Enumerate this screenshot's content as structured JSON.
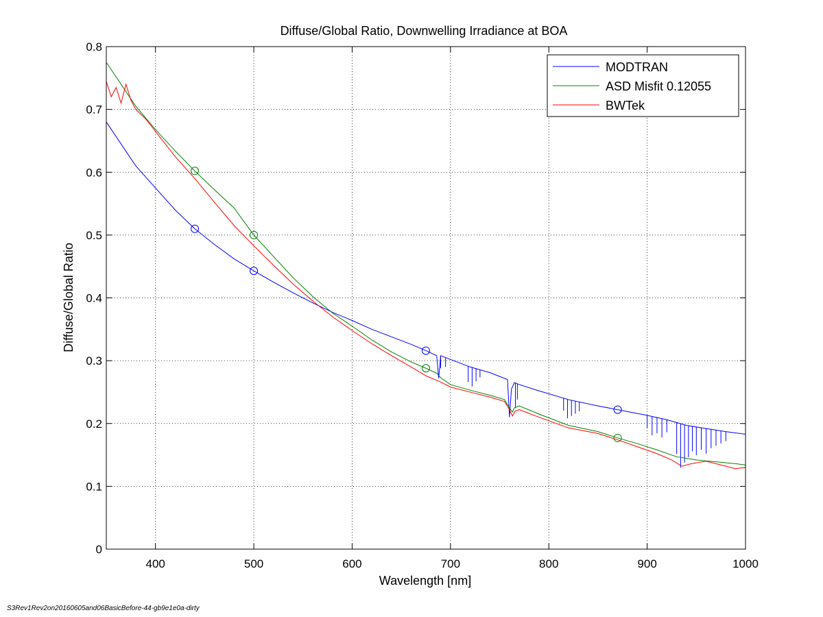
{
  "footer": "S3Rev1Rev2on20160605and06BasicBefore-44-gb9e1e0a-dirty",
  "chart_data": {
    "type": "line",
    "title": "Diffuse/Global Ratio, Downwelling Irradiance at BOA",
    "xlabel": "Wavelength [nm]",
    "ylabel": "Diffuse/Global Ratio",
    "xlim": [
      350,
      1000
    ],
    "ylim": [
      0,
      0.8
    ],
    "xticks": [
      400,
      500,
      600,
      700,
      800,
      900,
      1000
    ],
    "yticks": [
      0,
      0.1,
      0.2,
      0.3,
      0.4,
      0.5,
      0.6,
      0.7,
      0.8
    ],
    "xtick_labels": [
      "400",
      "500",
      "600",
      "700",
      "800",
      "900",
      "1000"
    ],
    "ytick_labels": [
      "0",
      "0.1",
      "0.2",
      "0.3",
      "0.4",
      "0.5",
      "0.6",
      "0.7",
      "0.8"
    ],
    "grid": true,
    "legend_position": "top-right",
    "series": [
      {
        "name": "MODTRAN",
        "color": "#0000ff",
        "x": [
          350,
          380,
          400,
          420,
          440,
          460,
          480,
          500,
          520,
          540,
          560,
          580,
          600,
          620,
          640,
          660,
          675,
          686,
          688,
          690,
          700,
          720,
          740,
          758,
          760,
          762,
          765,
          770,
          790,
          820,
          850,
          870,
          890,
          900,
          920,
          940,
          960,
          980,
          1000
        ],
        "y": [
          0.68,
          0.61,
          0.575,
          0.54,
          0.51,
          0.485,
          0.462,
          0.443,
          0.425,
          0.408,
          0.392,
          0.377,
          0.364,
          0.35,
          0.338,
          0.326,
          0.316,
          0.308,
          0.272,
          0.308,
          0.302,
          0.29,
          0.281,
          0.27,
          0.21,
          0.255,
          0.265,
          0.262,
          0.252,
          0.238,
          0.228,
          0.222,
          0.216,
          0.213,
          0.206,
          0.197,
          0.192,
          0.187,
          0.183
        ],
        "markers": {
          "x": [
            440,
            500,
            675,
            870
          ],
          "y": [
            0.51,
            0.443,
            0.316,
            0.222
          ]
        },
        "absorption_bands": [
          {
            "x": 690,
            "depth": 0.02
          },
          {
            "x": 695,
            "depth": 0.015
          },
          {
            "x": 718,
            "depth": 0.025
          },
          {
            "x": 722,
            "depth": 0.03
          },
          {
            "x": 726,
            "depth": 0.02
          },
          {
            "x": 730,
            "depth": 0.012
          },
          {
            "x": 766,
            "depth": 0.04
          },
          {
            "x": 768,
            "depth": 0.025
          },
          {
            "x": 815,
            "depth": 0.02
          },
          {
            "x": 819,
            "depth": 0.03
          },
          {
            "x": 823,
            "depth": 0.025
          },
          {
            "x": 827,
            "depth": 0.02
          },
          {
            "x": 831,
            "depth": 0.015
          },
          {
            "x": 900,
            "depth": 0.02
          },
          {
            "x": 905,
            "depth": 0.03
          },
          {
            "x": 910,
            "depth": 0.025
          },
          {
            "x": 915,
            "depth": 0.03
          },
          {
            "x": 920,
            "depth": 0.02
          },
          {
            "x": 930,
            "depth": 0.05
          },
          {
            "x": 934,
            "depth": 0.07
          },
          {
            "x": 938,
            "depth": 0.06
          },
          {
            "x": 942,
            "depth": 0.05
          },
          {
            "x": 946,
            "depth": 0.04
          },
          {
            "x": 950,
            "depth": 0.045
          },
          {
            "x": 955,
            "depth": 0.035
          },
          {
            "x": 960,
            "depth": 0.04
          },
          {
            "x": 965,
            "depth": 0.03
          },
          {
            "x": 970,
            "depth": 0.025
          },
          {
            "x": 975,
            "depth": 0.02
          },
          {
            "x": 980,
            "depth": 0.015
          }
        ]
      },
      {
        "name": "ASD Misfit 0.12055",
        "color": "#008000",
        "x": [
          350,
          380,
          400,
          420,
          440,
          460,
          480,
          500,
          520,
          540,
          560,
          580,
          600,
          620,
          640,
          660,
          675,
          686,
          690,
          700,
          720,
          740,
          755,
          760,
          763,
          765,
          770,
          790,
          820,
          850,
          870,
          890,
          910,
          930,
          950,
          970,
          990,
          1000
        ],
        "y": [
          0.775,
          0.705,
          0.668,
          0.634,
          0.602,
          0.572,
          0.543,
          0.5,
          0.466,
          0.432,
          0.402,
          0.376,
          0.355,
          0.333,
          0.314,
          0.298,
          0.288,
          0.28,
          0.273,
          0.262,
          0.253,
          0.245,
          0.238,
          0.225,
          0.218,
          0.225,
          0.228,
          0.215,
          0.197,
          0.187,
          0.177,
          0.168,
          0.158,
          0.147,
          0.142,
          0.139,
          0.136,
          0.134
        ],
        "markers": {
          "x": [
            440,
            500,
            675,
            870
          ],
          "y": [
            0.602,
            0.5,
            0.288,
            0.177
          ]
        }
      },
      {
        "name": "BWTek",
        "color": "#ff0000",
        "x": [
          350,
          355,
          360,
          365,
          370,
          375,
          380,
          390,
          400,
          420,
          440,
          460,
          480,
          500,
          520,
          540,
          560,
          580,
          600,
          620,
          640,
          660,
          675,
          690,
          700,
          720,
          740,
          755,
          760,
          763,
          766,
          770,
          790,
          820,
          850,
          870,
          890,
          910,
          925,
          935,
          945,
          960,
          975,
          990,
          1000
        ],
        "y": [
          0.745,
          0.72,
          0.735,
          0.71,
          0.74,
          0.715,
          0.7,
          0.685,
          0.665,
          0.625,
          0.59,
          0.552,
          0.515,
          0.483,
          0.452,
          0.422,
          0.395,
          0.37,
          0.348,
          0.327,
          0.308,
          0.29,
          0.276,
          0.266,
          0.258,
          0.25,
          0.242,
          0.235,
          0.222,
          0.212,
          0.22,
          0.222,
          0.21,
          0.193,
          0.184,
          0.174,
          0.163,
          0.152,
          0.142,
          0.132,
          0.136,
          0.14,
          0.134,
          0.128,
          0.13
        ]
      }
    ]
  }
}
